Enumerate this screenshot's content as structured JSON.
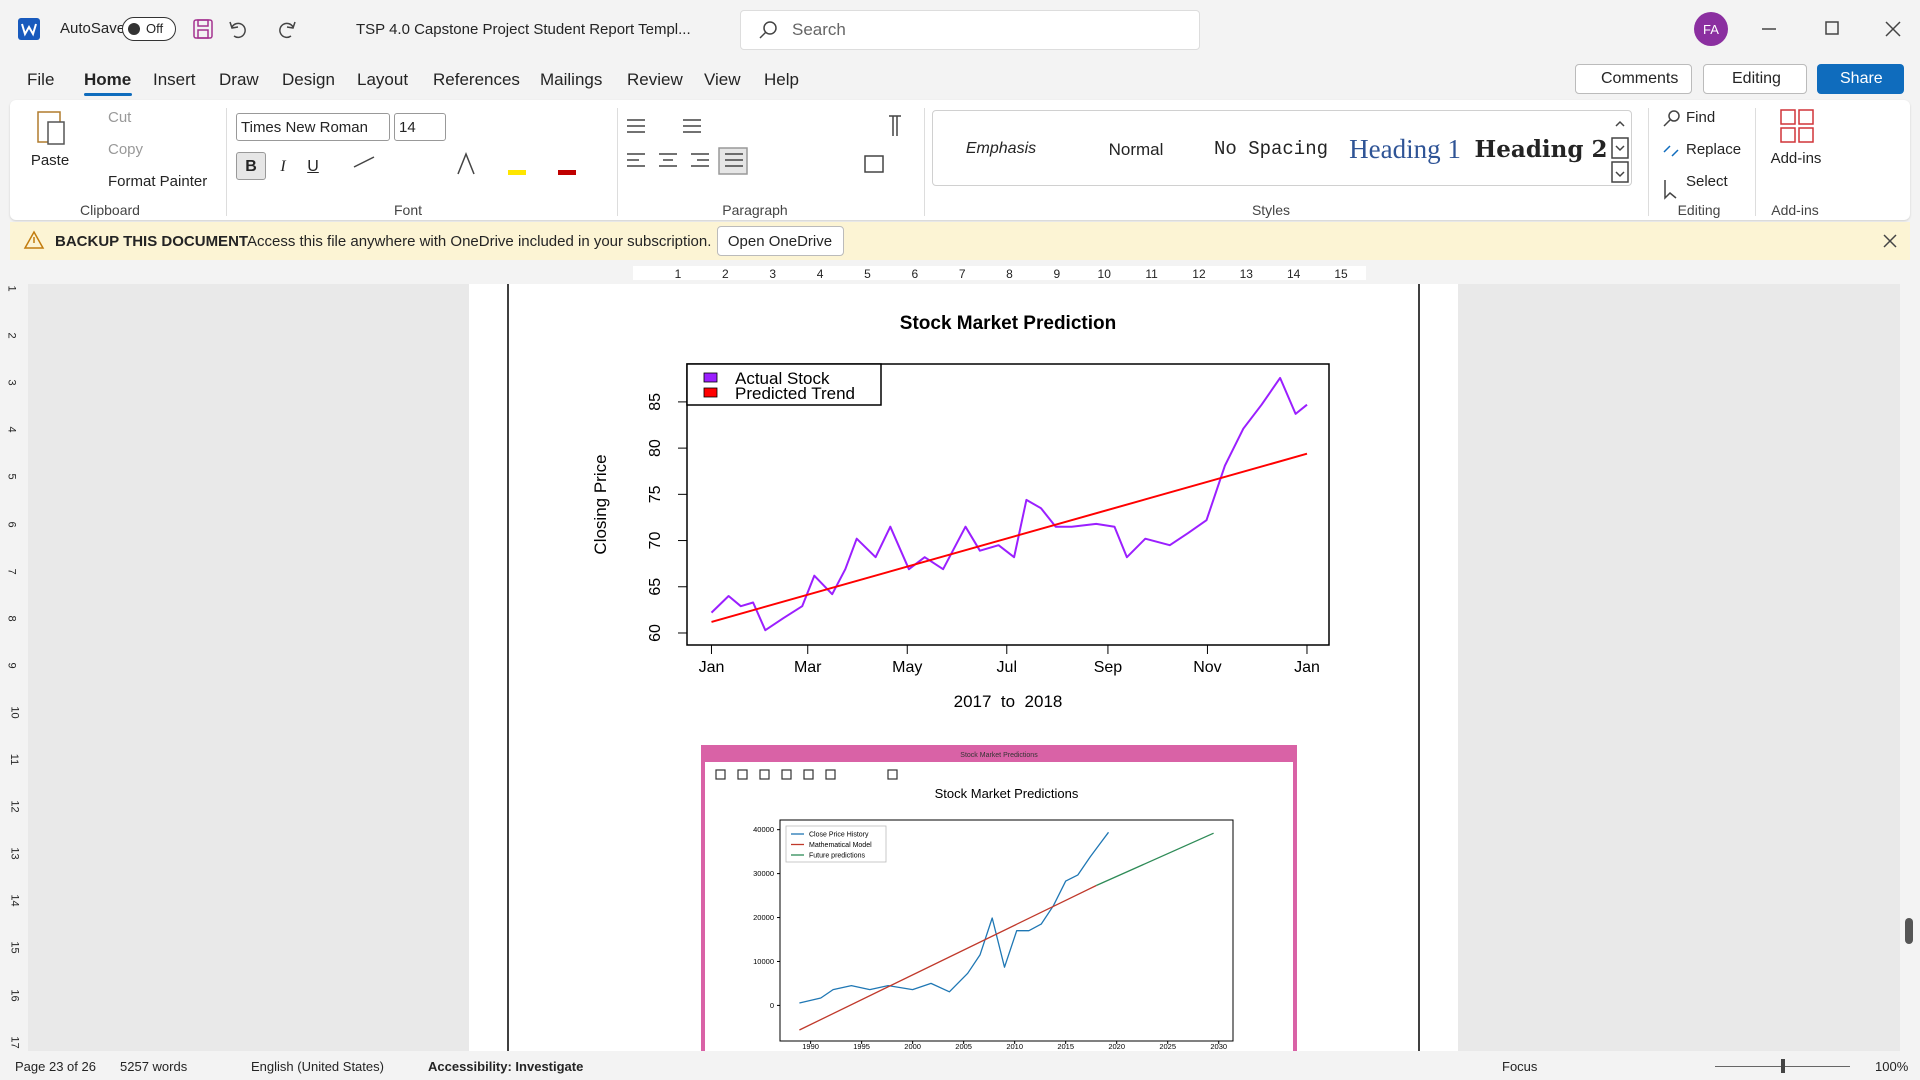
{
  "title_bar": {
    "autosave": "AutoSave",
    "autosave_state": "Off",
    "document_title": "TSP 4.0 Capstone Project Student Report Templ...",
    "search": "Search",
    "user_initials": "FA"
  },
  "tabs": [
    "File",
    "Home",
    "Insert",
    "Draw",
    "Design",
    "Layout",
    "References",
    "Mailings",
    "Review",
    "View",
    "Help"
  ],
  "actions": {
    "comments": "Comments",
    "editing": "Editing",
    "share": "Share"
  },
  "ribbon": {
    "clipboard": {
      "paste": "Paste",
      "cut": "Cut",
      "copy": "Copy",
      "format_painter": "Format Painter",
      "label": "Clipboard"
    },
    "font": {
      "name": "Times New Roman",
      "size": 14,
      "bold": "B",
      "italic": "I",
      "underline": "U",
      "label": "Font"
    },
    "paragraph": {
      "label": "Paragraph"
    },
    "styles": {
      "items": [
        "Emphasis",
        "Normal",
        "No Spacing",
        "Heading 1",
        "Heading 2"
      ],
      "label": "Styles"
    },
    "editing": {
      "find": "Find",
      "replace": "Replace",
      "select": "Select",
      "label": "Editing"
    },
    "add_ins": {
      "button": "Add-ins",
      "label": "Add-ins"
    }
  },
  "notification": {
    "title": "BACKUP THIS DOCUMENT",
    "message": "Access this file anywhere with OneDrive included in your subscription.",
    "button": "Open OneDrive"
  },
  "ruler": {
    "horizontal": [
      1,
      2,
      3,
      4,
      5,
      6,
      7,
      8,
      9,
      10,
      11,
      12,
      13,
      14,
      15
    ],
    "vertical": [
      1,
      2,
      3,
      4,
      5,
      6,
      7,
      8,
      9,
      10,
      11,
      12,
      13,
      14,
      15,
      16,
      17
    ]
  },
  "chart_data": [
    {
      "type": "line",
      "title": "Stock Market Prediction",
      "x_label": "2017  to  2018",
      "y_label": "Closing Price",
      "xlim": [
        -15,
        378.5
      ],
      "ylim": [
        58.7,
        89.1
      ],
      "xticks": [
        {
          "value": 0,
          "label": "Jan"
        },
        {
          "value": 59,
          "label": "Mar"
        },
        {
          "value": 120,
          "label": "May"
        },
        {
          "value": 181,
          "label": "Jul"
        },
        {
          "value": 243,
          "label": "Sep"
        },
        {
          "value": 304,
          "label": "Nov"
        },
        {
          "value": 365,
          "label": "Jan"
        }
      ],
      "yticks": [
        60,
        65,
        70,
        75,
        80,
        85
      ],
      "legend": "upper left",
      "series": [
        {
          "name": "Actual Stock",
          "color": "#9b1fff",
          "x": [
            0,
            10.5,
            18,
            25.5,
            33,
            44,
            55.6,
            63,
            74,
            82,
            89,
            100.6,
            109.6,
            121,
            130.7,
            142,
            155.7,
            164.5,
            176,
            185.5,
            193,
            202,
            211,
            220.8,
            235.8,
            247,
            254.6,
            265.9,
            280.9,
            292,
            303.4,
            314.7,
            326,
            337.2,
            348.5,
            358,
            365
          ],
          "values": [
            62.2,
            64.0,
            62.9,
            63.3,
            60.3,
            61.6,
            62.9,
            66.2,
            64.2,
            66.9,
            70.2,
            68.2,
            71.5,
            66.9,
            68.2,
            66.9,
            71.5,
            68.9,
            69.5,
            68.2,
            74.4,
            73.5,
            71.5,
            71.5,
            71.8,
            71.5,
            68.2,
            70.2,
            69.5,
            70.8,
            72.2,
            78.1,
            82.1,
            84.7,
            87.6,
            83.7,
            84.7
          ]
        },
        {
          "name": "Predicted Trend",
          "color": "#ff0000",
          "x": [
            0,
            365
          ],
          "values": [
            61.2,
            79.4
          ]
        }
      ]
    },
    {
      "type": "line",
      "window_title": "Stock Market Predictions",
      "title": "Stock Market Predictions",
      "xlim": [
        1987.0,
        2031.4
      ],
      "ylim": [
        -8100,
        42200
      ],
      "xticks": [
        1990,
        1995,
        2000,
        2005,
        2010,
        2015,
        2020,
        2025,
        2030
      ],
      "yticks": [
        0,
        10000,
        20000,
        30000,
        40000
      ],
      "legend": "upper left",
      "series": [
        {
          "name": "Close Price History",
          "color": "#1f77b4",
          "x": [
            1988.9,
            1991,
            1992.2,
            1994,
            1995.8,
            1997.6,
            2000,
            2001.8,
            2003.6,
            2005.4,
            2006.6,
            2007.8,
            2009,
            2010.2,
            2011.4,
            2012.6,
            2013.8,
            2015,
            2016.2,
            2017.4,
            2018.3,
            2019.2
          ],
          "values": [
            560,
            1680,
            3600,
            4500,
            3600,
            4500,
            3600,
            5000,
            3100,
            7300,
            11500,
            19900,
            8700,
            17000,
            17000,
            18500,
            22700,
            28300,
            29700,
            33800,
            36600,
            39400
          ]
        },
        {
          "name": "Mathematical Model",
          "color": "#c0392b",
          "x": [
            1988.9,
            2018
          ],
          "values": [
            -5600,
            27300
          ]
        },
        {
          "name": "Future predictions",
          "color": "#2e8b57",
          "x": [
            2018,
            2029.5
          ],
          "values": [
            27300,
            39200
          ]
        }
      ]
    }
  ],
  "status_bar": {
    "page": "Page 23 of 26",
    "words": "5257 words",
    "language": "English (United States)",
    "accessibility": "Accessibility: Investigate",
    "focus": "Focus",
    "zoom": "100%"
  }
}
